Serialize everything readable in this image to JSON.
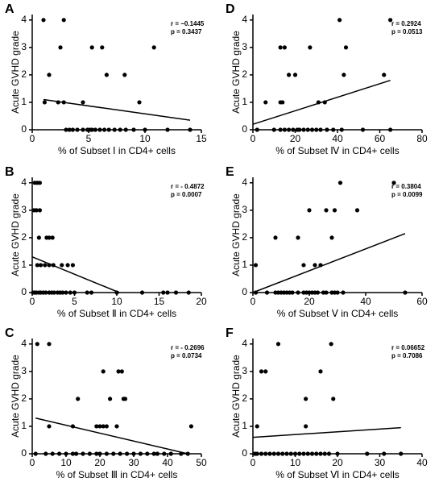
{
  "chart_data": [
    {
      "type": "scatter",
      "panel_label": "A",
      "y_label": "Acute GVHD grade",
      "x_label": "% of Subset Ⅰ in CD4+ cells",
      "annotations": [
        "r = −0.1445",
        "p = 0.3437"
      ],
      "x": [
        1.0,
        2.8,
        2.5,
        5.3,
        6.2,
        10.8,
        1.5,
        6.6,
        8.2,
        1.1,
        2.3,
        2.8,
        4.5,
        9.5,
        3.0,
        3.3,
        3.6,
        4.0,
        4.5,
        4.9,
        5.1,
        5.3,
        5.6,
        6.0,
        6.4,
        6.8,
        7.3,
        7.8,
        8.3,
        9.0,
        10.0,
        12.0,
        14.0
      ],
      "values": [
        4,
        4,
        3,
        3,
        3,
        3,
        2,
        2,
        2,
        1,
        1,
        1,
        1,
        1,
        0,
        0,
        0,
        0,
        0,
        0,
        0,
        0,
        0,
        0,
        0,
        0,
        0,
        0,
        0,
        0,
        0,
        0,
        0
      ],
      "fit_line": {
        "x": [
          1,
          14
        ],
        "values": [
          1.1,
          0.35
        ]
      },
      "xlim": [
        0,
        15
      ],
      "xticks": [
        0,
        5,
        10,
        15
      ],
      "ylim": [
        0,
        4.2
      ],
      "yticks": [
        0,
        1,
        2,
        3,
        4
      ],
      "color": "#000000"
    },
    {
      "type": "scatter",
      "panel_label": "B",
      "y_label": "Acute GVHD grade",
      "x_label": "% of Subset Ⅱ in CD4+ cells",
      "annotations": [
        "r = - 0.4872",
        "p = 0.0007"
      ],
      "x": [
        0.3,
        0.6,
        0.9,
        0.2,
        0.5,
        0.9,
        0.8,
        1.7,
        2.0,
        2.4,
        0.6,
        1.0,
        1.5,
        2.0,
        2.5,
        3.5,
        4.2,
        4.8,
        0.1,
        0.3,
        0.5,
        0.8,
        1.0,
        1.3,
        1.6,
        2.0,
        2.3,
        2.6,
        3.0,
        3.3,
        3.6,
        4.0,
        4.5,
        5.0,
        6.5,
        7.0,
        10.0,
        13.0,
        15.5,
        16.0,
        17.0,
        18.5
      ],
      "values": [
        4,
        4,
        4,
        3,
        3,
        3,
        2,
        2,
        2,
        2,
        1,
        1,
        1,
        1,
        1,
        1,
        1,
        1,
        0,
        0,
        0,
        0,
        0,
        0,
        0,
        0,
        0,
        0,
        0,
        0,
        0,
        0,
        0,
        0,
        0,
        0,
        0,
        0,
        0,
        0,
        0,
        0
      ],
      "fit_line": {
        "x": [
          0,
          10.3
        ],
        "values": [
          1.3,
          0
        ]
      },
      "xlim": [
        0,
        20
      ],
      "xticks": [
        0,
        5,
        10,
        15,
        20
      ],
      "ylim": [
        0,
        4.2
      ],
      "yticks": [
        0,
        1,
        2,
        3,
        4
      ],
      "color": "#000000"
    },
    {
      "type": "scatter",
      "panel_label": "C",
      "y_label": "Acute GVHD grade",
      "x_label": "% of Subset Ⅲ in CD4+ cells",
      "annotations": [
        "r = - 0.2696",
        "p = 0.0734"
      ],
      "x": [
        1.5,
        5,
        21,
        25.5,
        26.5,
        13.5,
        23,
        27,
        27.5,
        5,
        12,
        19,
        20,
        21,
        22,
        25,
        47,
        1,
        4,
        6,
        8,
        10,
        12,
        13,
        15,
        17,
        19,
        20,
        22,
        24,
        26,
        28,
        30,
        32,
        34,
        36,
        37,
        39,
        41,
        44,
        46
      ],
      "values": [
        4,
        4,
        3,
        3,
        3,
        2,
        2,
        2,
        2,
        1,
        1,
        1,
        1,
        1,
        1,
        1,
        1,
        0,
        0,
        0,
        0,
        0,
        0,
        0,
        0,
        0,
        0,
        0,
        0,
        0,
        0,
        0,
        0,
        0,
        0,
        0,
        0,
        0,
        0,
        0,
        0
      ],
      "fit_line": {
        "x": [
          1,
          46
        ],
        "values": [
          1.3,
          0
        ]
      },
      "xlim": [
        0,
        50
      ],
      "xticks": [
        0,
        10,
        20,
        30,
        40,
        50
      ],
      "ylim": [
        0,
        4.2
      ],
      "yticks": [
        0,
        1,
        2,
        3,
        4
      ],
      "color": "#000000"
    },
    {
      "type": "scatter",
      "panel_label": "D",
      "y_label": "Acute GVHD grade",
      "x_label": "% of Subset Ⅳ in CD4+ cells",
      "annotations": [
        "r = 0.2924",
        "p = 0.0513"
      ],
      "x": [
        41,
        65,
        13,
        15,
        27,
        44,
        17,
        20,
        43,
        62,
        6,
        13,
        14,
        31,
        34,
        2,
        10,
        13,
        15,
        17,
        19,
        21,
        22,
        24,
        26,
        28,
        30,
        32,
        35,
        38,
        42,
        52,
        65
      ],
      "values": [
        4,
        4,
        3,
        3,
        3,
        3,
        2,
        2,
        2,
        2,
        1,
        1,
        1,
        1,
        1,
        0,
        0,
        0,
        0,
        0,
        0,
        0,
        0,
        0,
        0,
        0,
        0,
        0,
        0,
        0,
        0,
        0,
        0
      ],
      "fit_line": {
        "x": [
          0,
          65
        ],
        "values": [
          0.2,
          1.8
        ]
      },
      "xlim": [
        0,
        80
      ],
      "xticks": [
        0,
        20,
        40,
        60,
        80
      ],
      "ylim": [
        0,
        4.2
      ],
      "yticks": [
        0,
        1,
        2,
        3,
        4
      ],
      "color": "#000000"
    },
    {
      "type": "scatter",
      "panel_label": "E",
      "y_label": "Acute GVHD grade",
      "x_label": "% of Subset Ⅴ in CD4+ cells",
      "annotations": [
        "r = 0.3804",
        "p = 0.0099"
      ],
      "x": [
        31,
        50,
        20,
        26,
        29,
        37,
        8,
        16,
        28,
        1,
        18,
        22,
        24,
        1,
        5,
        8,
        9,
        10,
        11,
        12,
        13,
        14,
        16,
        18,
        19,
        20,
        21,
        22,
        23,
        25,
        26,
        28,
        29,
        30,
        32,
        54
      ],
      "values": [
        4,
        4,
        3,
        3,
        3,
        3,
        2,
        2,
        2,
        1,
        1,
        1,
        1,
        0,
        0,
        0,
        0,
        0,
        0,
        0,
        0,
        0,
        0,
        0,
        0,
        0,
        0,
        0,
        0,
        0,
        0,
        0,
        0,
        0,
        0,
        0
      ],
      "fit_line": {
        "x": [
          0,
          54
        ],
        "values": [
          0,
          2.15
        ]
      },
      "xlim": [
        0,
        60
      ],
      "xticks": [
        0,
        20,
        40,
        60
      ],
      "ylim": [
        0,
        4.2
      ],
      "yticks": [
        0,
        1,
        2,
        3,
        4
      ],
      "color": "#000000"
    },
    {
      "type": "scatter",
      "panel_label": "F",
      "y_label": "Acute GVHD grade",
      "x_label": "% of Subset Ⅵ in CD4+ cells",
      "annotations": [
        "r = 0.06652",
        "p = 0.7086"
      ],
      "x": [
        6,
        18.5,
        2,
        3,
        16,
        12.5,
        19,
        1,
        12.5,
        0.5,
        1,
        2,
        3,
        4,
        5,
        6,
        7,
        8,
        9,
        10,
        11,
        12,
        13,
        14,
        15,
        16,
        17,
        18,
        20,
        27,
        31,
        35
      ],
      "values": [
        4,
        4,
        3,
        3,
        3,
        2,
        2,
        1,
        1,
        0,
        0,
        0,
        0,
        0,
        0,
        0,
        0,
        0,
        0,
        0,
        0,
        0,
        0,
        0,
        0,
        0,
        0,
        0,
        0,
        0,
        0,
        0
      ],
      "fit_line": {
        "x": [
          0,
          35
        ],
        "values": [
          0.6,
          0.95
        ]
      },
      "xlim": [
        0,
        40
      ],
      "xticks": [
        0,
        10,
        20,
        30,
        40
      ],
      "ylim": [
        0,
        4.2
      ],
      "yticks": [
        0,
        1,
        2,
        3,
        4
      ],
      "color": "#000000"
    }
  ]
}
